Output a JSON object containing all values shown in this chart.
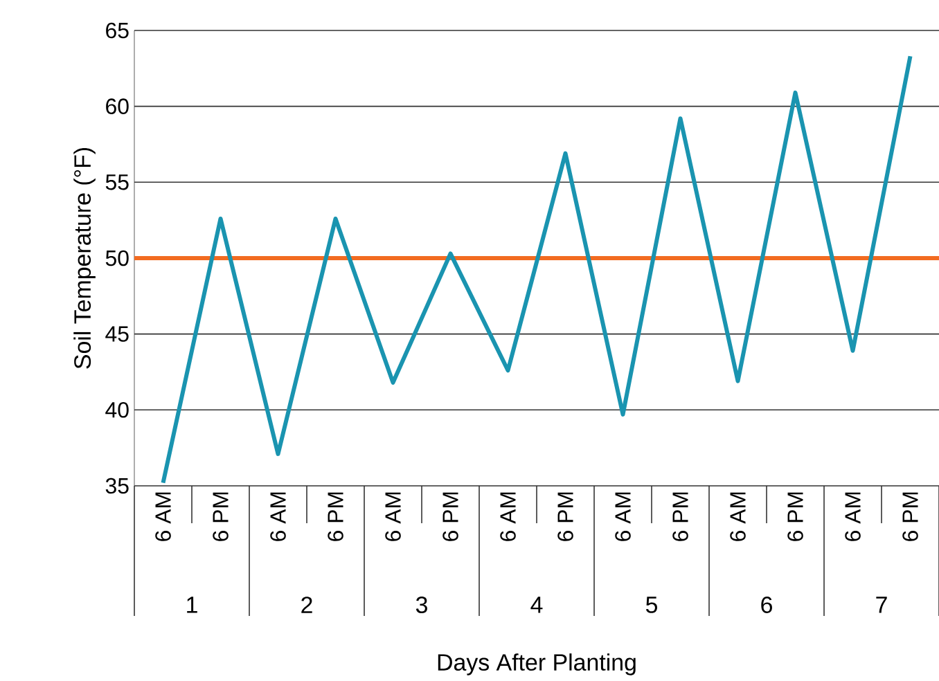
{
  "chart_data": {
    "type": "line",
    "xlabel": "Days After Planting",
    "ylabel": "Soil Temperature (°F)",
    "categories": [
      "6 AM",
      "6 PM",
      "6 AM",
      "6 PM",
      "6 AM",
      "6 PM",
      "6 AM",
      "6 PM",
      "6 AM",
      "6 PM",
      "6 AM",
      "6 PM",
      "6 AM",
      "6 PM"
    ],
    "series": [
      {
        "color": "#1a94b0",
        "values": [
          35.2,
          52.6,
          37.1,
          52.6,
          41.8,
          50.3,
          42.6,
          56.9,
          39.7,
          59.2,
          41.9,
          60.9,
          43.9,
          63.3
        ]
      }
    ],
    "ylim": [
      35,
      65
    ],
    "yticks": [
      35,
      40,
      45,
      50,
      55,
      60,
      65
    ],
    "grid": "y",
    "marker": "none",
    "line_style": "solid",
    "ref_lines": [
      {
        "axis": "y",
        "value": 50,
        "color": "#f26b21"
      }
    ],
    "annotations": [
      "1",
      "2",
      "3",
      "4",
      "5",
      "6",
      "7"
    ]
  }
}
